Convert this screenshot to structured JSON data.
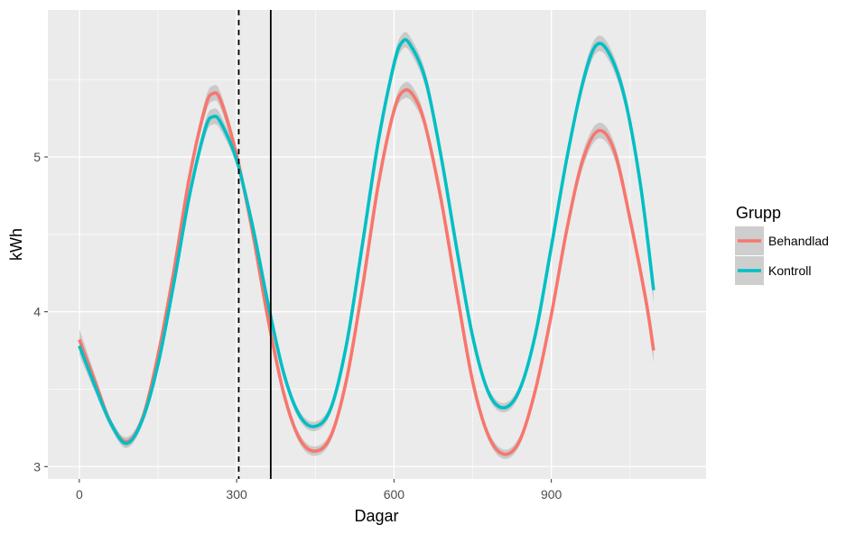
{
  "chart_data": {
    "type": "line",
    "xlabel": "Dagar",
    "ylabel": "kWh",
    "xlim": [
      -60,
      1195
    ],
    "ylim": [
      2.92,
      5.95
    ],
    "xticks": [
      0,
      300,
      600,
      900
    ],
    "xtick_labels": [
      "0",
      "300",
      "600",
      "900"
    ],
    "yticks": [
      3,
      4,
      5
    ],
    "ytick_labels": [
      "3",
      "4",
      "5"
    ],
    "grid": true,
    "legend": {
      "title": "Grupp",
      "position": "right"
    },
    "vlines": [
      {
        "x": 304,
        "style": "dashed"
      },
      {
        "x": 365,
        "style": "solid"
      }
    ],
    "colors": {
      "panel": "#EBEBEB",
      "grid": "#FFFFFF",
      "ribbon": "#BEBEBE",
      "Behandlad": "#F8766D",
      "Kontroll": "#00BFC4"
    },
    "series": [
      {
        "name": "Behandlad",
        "x": [
          0,
          30,
          60,
          90,
          120,
          150,
          180,
          210,
          240,
          255,
          270,
          300,
          330,
          360,
          390,
          420,
          450,
          480,
          510,
          540,
          570,
          600,
          620,
          640,
          660,
          690,
          720,
          750,
          780,
          810,
          840,
          870,
          900,
          930,
          960,
          990,
          1020,
          1050,
          1080,
          1095
        ],
        "y": [
          3.82,
          3.55,
          3.28,
          3.16,
          3.31,
          3.72,
          4.26,
          4.87,
          5.32,
          5.41,
          5.36,
          5.01,
          4.52,
          3.95,
          3.47,
          3.18,
          3.1,
          3.2,
          3.57,
          4.16,
          4.82,
          5.3,
          5.43,
          5.38,
          5.2,
          4.72,
          4.12,
          3.55,
          3.2,
          3.08,
          3.17,
          3.5,
          3.98,
          4.54,
          4.98,
          5.17,
          5.04,
          4.6,
          4.08,
          3.75
        ],
        "band": [
          0.07,
          0.04,
          0.03,
          0.03,
          0.03,
          0.03,
          0.04,
          0.04,
          0.05,
          0.05,
          0.05,
          0.04,
          0.04,
          0.04,
          0.03,
          0.03,
          0.03,
          0.03,
          0.03,
          0.04,
          0.04,
          0.04,
          0.05,
          0.05,
          0.04,
          0.04,
          0.04,
          0.03,
          0.03,
          0.03,
          0.03,
          0.03,
          0.04,
          0.04,
          0.05,
          0.05,
          0.05,
          0.05,
          0.06,
          0.08
        ]
      },
      {
        "name": "Kontroll",
        "x": [
          0,
          30,
          60,
          90,
          120,
          150,
          180,
          210,
          240,
          255,
          270,
          300,
          330,
          360,
          390,
          420,
          450,
          480,
          510,
          540,
          570,
          600,
          615,
          630,
          660,
          690,
          720,
          750,
          780,
          810,
          840,
          870,
          900,
          930,
          960,
          985,
          1010,
          1040,
          1070,
          1095
        ],
        "y": [
          3.78,
          3.52,
          3.28,
          3.15,
          3.3,
          3.66,
          4.18,
          4.75,
          5.18,
          5.26,
          5.22,
          4.98,
          4.56,
          4.05,
          3.6,
          3.33,
          3.26,
          3.38,
          3.8,
          4.44,
          5.1,
          5.6,
          5.74,
          5.73,
          5.5,
          5.0,
          4.4,
          3.84,
          3.48,
          3.38,
          3.5,
          3.86,
          4.42,
          5.0,
          5.48,
          5.72,
          5.67,
          5.38,
          4.82,
          4.14
        ],
        "band": [
          0.06,
          0.04,
          0.03,
          0.03,
          0.03,
          0.03,
          0.04,
          0.04,
          0.05,
          0.05,
          0.05,
          0.04,
          0.04,
          0.04,
          0.03,
          0.03,
          0.03,
          0.03,
          0.03,
          0.04,
          0.04,
          0.05,
          0.05,
          0.05,
          0.05,
          0.04,
          0.04,
          0.03,
          0.03,
          0.03,
          0.03,
          0.03,
          0.04,
          0.04,
          0.05,
          0.05,
          0.05,
          0.05,
          0.06,
          0.08
        ]
      }
    ]
  }
}
